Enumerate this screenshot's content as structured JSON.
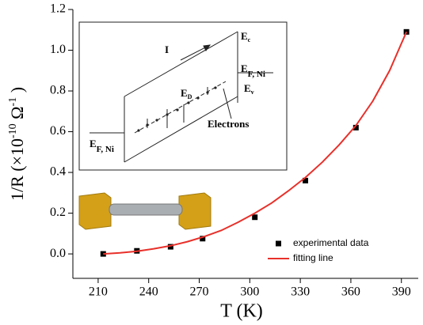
{
  "chart_data": {
    "type": "scatter",
    "xlabel": "T (K)",
    "ylabel": [
      "1/R (×10",
      "-10",
      " Ω",
      "-1",
      " )"
    ],
    "xlim": [
      195,
      400
    ],
    "xticks": [
      210,
      240,
      270,
      300,
      330,
      360,
      390
    ],
    "ylim": [
      -0.12,
      1.2
    ],
    "yticks": [
      {
        "value": 0,
        "label": "0.0"
      },
      0.2,
      0.4,
      0.6,
      0.8,
      {
        "value": 1,
        "label": "1.0"
      },
      1.2
    ],
    "legend": "lower right",
    "series": [
      {
        "name": "experimental data",
        "type": "scatter",
        "color": "#000000",
        "x": [
          213,
          233,
          253,
          272,
          303,
          333,
          363,
          393
        ],
        "values": [
          0.0,
          0.015,
          0.035,
          0.075,
          0.18,
          0.36,
          0.62,
          1.09
        ]
      },
      {
        "name": "fitting line",
        "type": "line",
        "color": "#e8302a",
        "x": [
          213,
          223,
          233,
          243,
          253,
          263,
          273,
          283,
          293,
          303,
          313,
          323,
          333,
          343,
          353,
          363,
          373,
          383,
          393
        ],
        "values": [
          0.0,
          0.005,
          0.013,
          0.025,
          0.04,
          0.06,
          0.085,
          0.115,
          0.155,
          0.2,
          0.25,
          0.31,
          0.375,
          0.45,
          0.535,
          0.63,
          0.75,
          0.9,
          1.09
        ]
      }
    ],
    "inset": {
      "current": "I",
      "electrons": "Electrons",
      "levels": [
        {
          "main": "E",
          "sub": "c"
        },
        {
          "main": "E",
          "sub": "F, Ni"
        },
        {
          "main": "E",
          "sub": "v"
        },
        {
          "main": "E",
          "sub": "D"
        },
        {
          "main": "E",
          "sub": "F, Ni"
        }
      ]
    }
  }
}
